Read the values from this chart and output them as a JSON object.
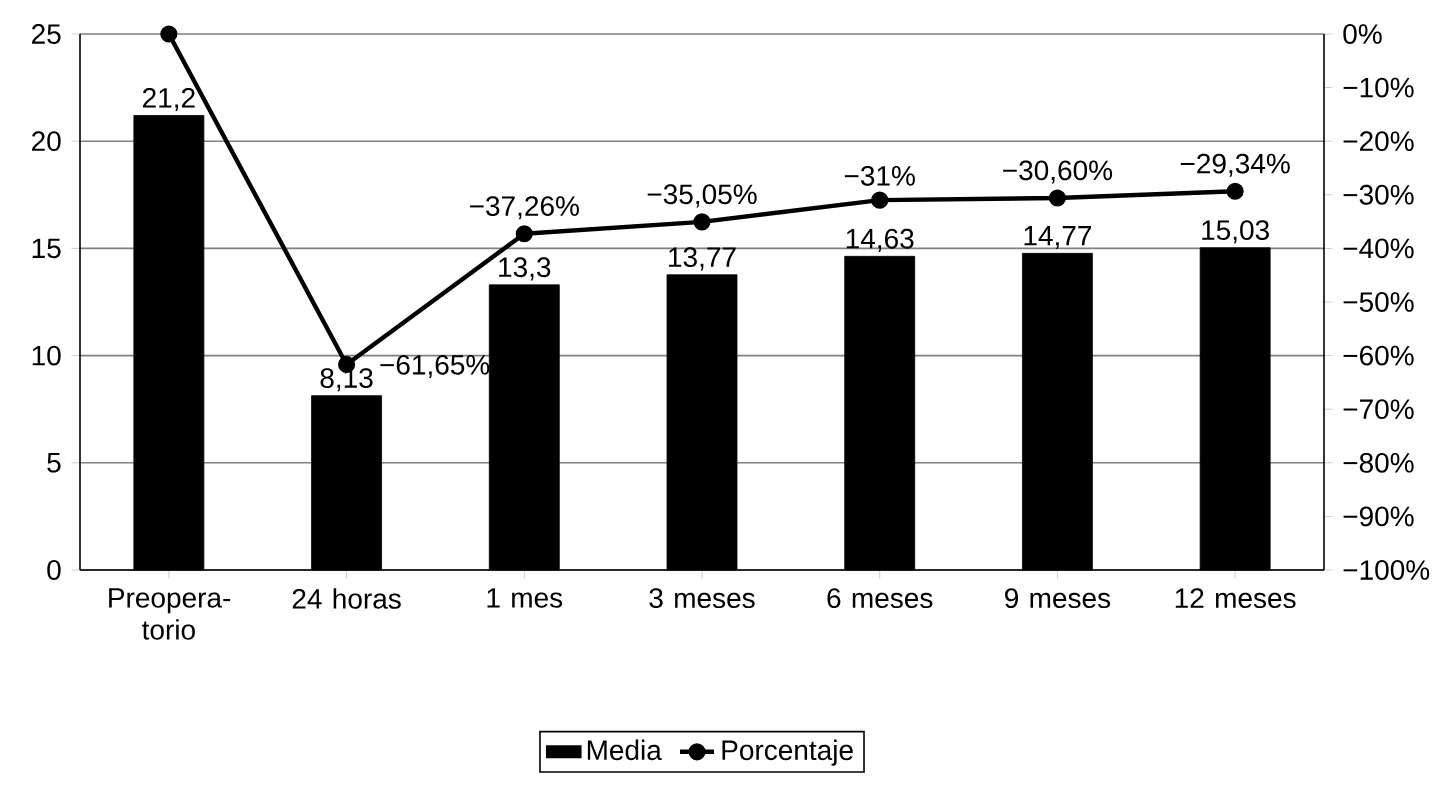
{
  "chart_data": {
    "type": "bar",
    "categories": [
      "Preopera-torio",
      "24 horas",
      "1 mes",
      "3 meses",
      "6 meses",
      "9 meses",
      "12 meses"
    ],
    "series": [
      {
        "name": "Media",
        "color": "#000000",
        "values": [
          21.2,
          8.13,
          13.3,
          13.77,
          14.63,
          14.77,
          15.03
        ],
        "value_labels": [
          "21,2",
          "8,13",
          "13,3",
          "13,77",
          "14,63",
          "14,77",
          "15,03"
        ]
      },
      {
        "name": "Porcentaje",
        "type": "line",
        "axis": "y2",
        "color": "#000000",
        "marker": "circle",
        "values": [
          0,
          -61.65,
          -37.26,
          -35.05,
          -31,
          -30.6,
          -29.34
        ],
        "value_labels": [
          null,
          "−61,65%",
          "−37,26%",
          "−35,05%",
          "−31%",
          "−30,60%",
          "−29,34%"
        ]
      }
    ],
    "ylim": [
      0,
      25
    ],
    "yticks": [
      0,
      5,
      10,
      15,
      20,
      25
    ],
    "y2lim": [
      -100,
      0
    ],
    "y2ticks": [
      {
        "value": 0,
        "label": "0%"
      },
      {
        "value": -10,
        "label": "−10%"
      },
      {
        "value": -20,
        "label": "−20%"
      },
      {
        "value": -30,
        "label": "−30%"
      },
      {
        "value": -40,
        "label": "−40%"
      },
      {
        "value": -50,
        "label": "−50%"
      },
      {
        "value": -60,
        "label": "−60%"
      },
      {
        "value": -70,
        "label": "−70%"
      },
      {
        "value": -80,
        "label": "−80%"
      },
      {
        "value": -90,
        "label": "−90%"
      },
      {
        "value": -100,
        "label": "−100%"
      }
    ],
    "grid": "y",
    "legend": "bottom"
  }
}
